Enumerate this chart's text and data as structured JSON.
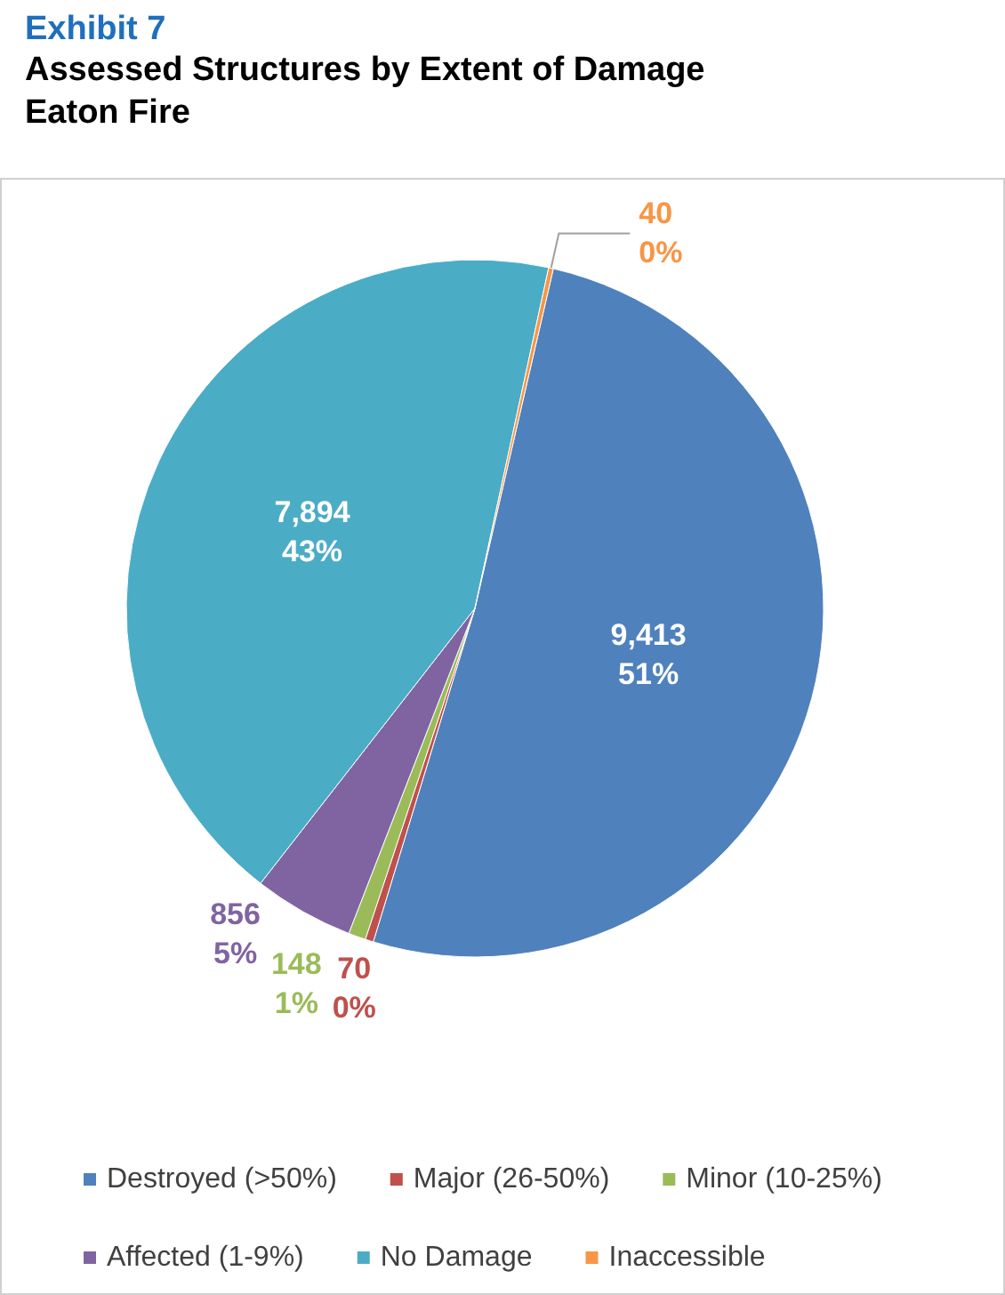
{
  "chart_data": {
    "type": "pie",
    "title": "Exhibit 7",
    "subtitle": "Assessed Structures by Extent of Damage\nEaton Fire",
    "categories": [
      "Destroyed (>50%)",
      "Major (26-50%)",
      "Minor (10-25%)",
      "Affected (1-9%)",
      "No Damage",
      "Inaccessible"
    ],
    "values": [
      9413,
      70,
      148,
      856,
      7894,
      40
    ],
    "colors": [
      "#4f81bd",
      "#c0504d",
      "#9bbb59",
      "#8064a2",
      "#4bacc6",
      "#f79646"
    ],
    "value_labels": [
      "9,413\n51%",
      "70\n0%",
      "148\n1%",
      "856\n5%",
      "7,894\n43%",
      "40\n0%"
    ],
    "legend": "bottom"
  }
}
